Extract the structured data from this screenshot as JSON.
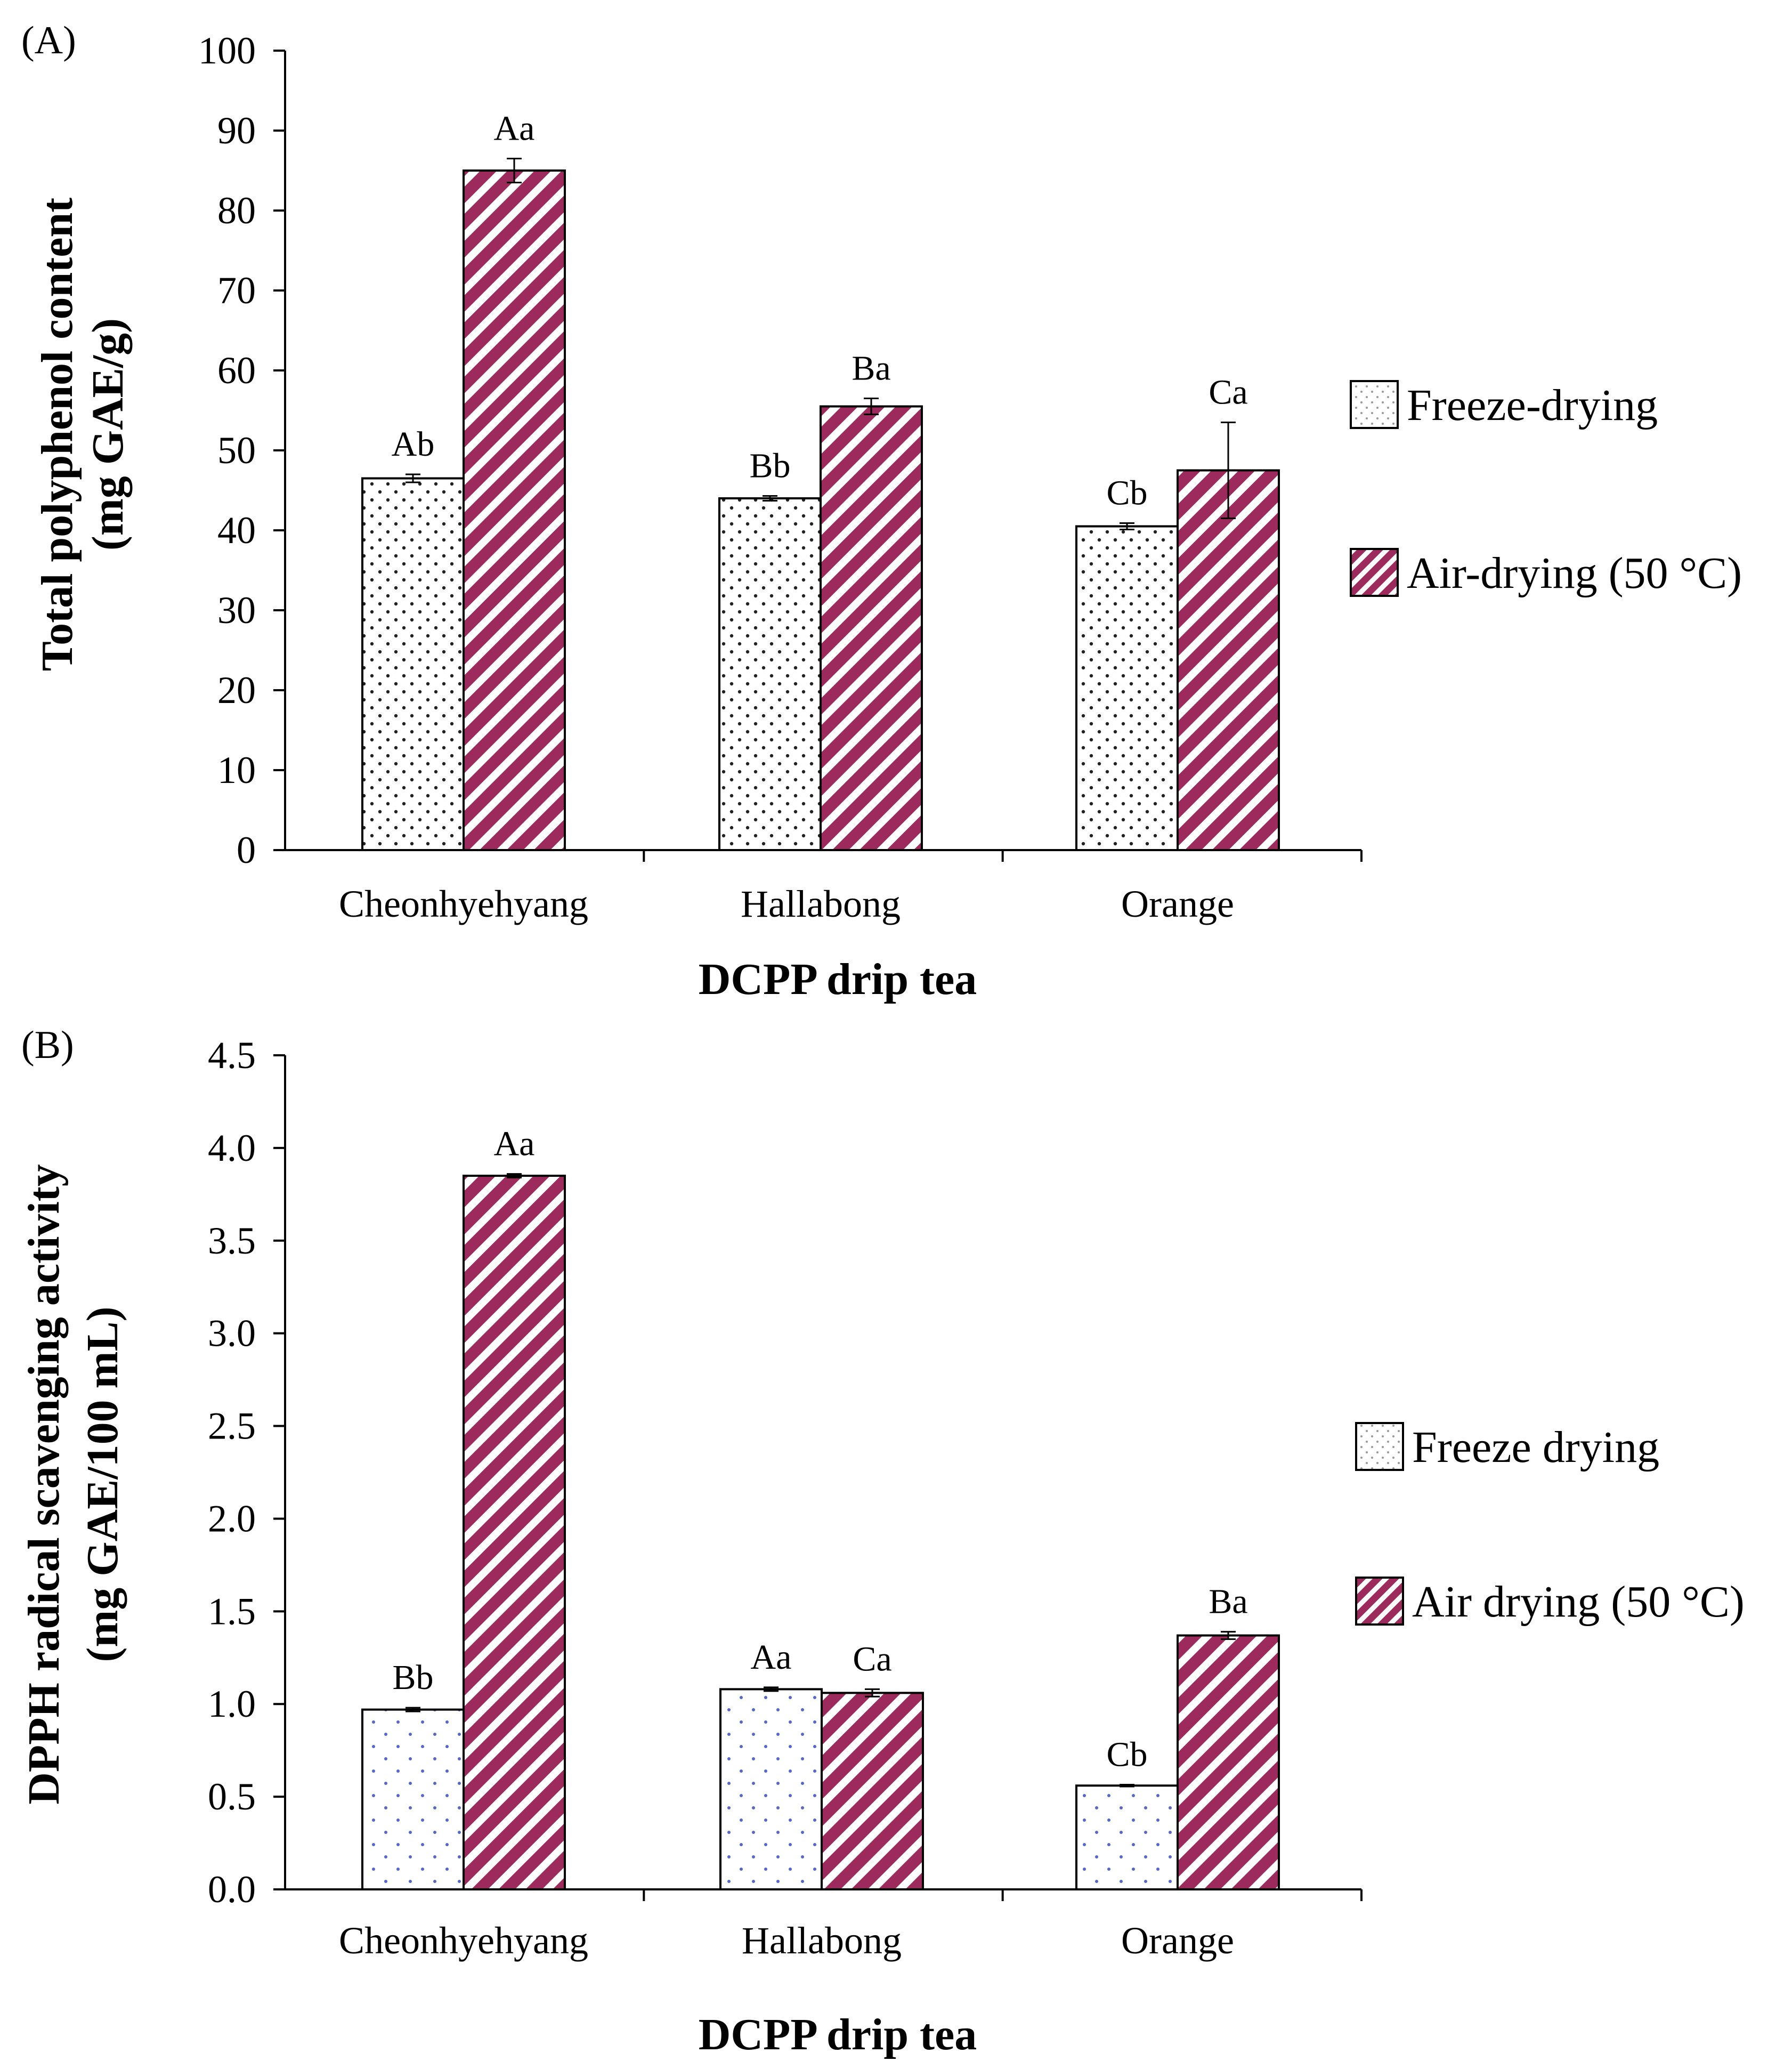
{
  "chart_data": [
    {
      "type": "bar",
      "panel_label": "(A)",
      "categories": [
        "Cheonhyehyang",
        "Hallabong",
        "Orange"
      ],
      "xlabel": "DCPP drip tea",
      "ylabel": "Total polyphenol content",
      "ylabel_unit": "(mg GAE/g)",
      "ylim": [
        0,
        100
      ],
      "yticks": [
        0,
        10,
        20,
        30,
        40,
        50,
        60,
        70,
        80,
        90,
        100
      ],
      "tick_decimals": 0,
      "grid": false,
      "legend_position": "right",
      "series": [
        {
          "name": "Freeze-drying",
          "pattern": "dots",
          "values": [
            46.5,
            44.0,
            40.5
          ],
          "errors": [
            0.5,
            0.3,
            0.4
          ],
          "letters": [
            "Ab",
            "Bb",
            "Cb"
          ]
        },
        {
          "name": "Air-drying (50 °C)",
          "pattern": "stripes",
          "values": [
            85.0,
            55.5,
            47.5
          ],
          "errors": [
            1.5,
            1.0,
            6.0
          ],
          "letters": [
            "Aa",
            "Ba",
            "Ca"
          ]
        }
      ]
    },
    {
      "type": "bar",
      "panel_label": "(B)",
      "categories": [
        "Cheonhyehyang",
        "Hallabong",
        "Orange"
      ],
      "xlabel": "DCPP drip tea",
      "ylabel": "DPPH radical scavenging activity",
      "ylabel_unit": "(mg GAE/100 mL)",
      "ylim": [
        0,
        4.5
      ],
      "yticks": [
        0.0,
        0.5,
        1.0,
        1.5,
        2.0,
        2.5,
        3.0,
        3.5,
        4.0,
        4.5
      ],
      "tick_decimals": 1,
      "grid": false,
      "legend_position": "right",
      "series": [
        {
          "name": "Freeze drying",
          "pattern": "dots-blue",
          "values": [
            0.97,
            1.08,
            0.56
          ],
          "errors": [
            0.01,
            0.01,
            0.005
          ],
          "letters": [
            "Bb",
            "Aa",
            "Cb"
          ]
        },
        {
          "name": "Air drying (50 °C)",
          "pattern": "stripes",
          "values": [
            3.85,
            1.06,
            1.37
          ],
          "errors": [
            0.01,
            0.02,
            0.02
          ],
          "letters": [
            "Aa",
            "Ca",
            "Ba"
          ]
        }
      ]
    }
  ],
  "colors": {
    "stripe": "#9c2a5c",
    "axis": "#000000",
    "dot_black": "#222222",
    "dot_blue": "#5566cc"
  }
}
